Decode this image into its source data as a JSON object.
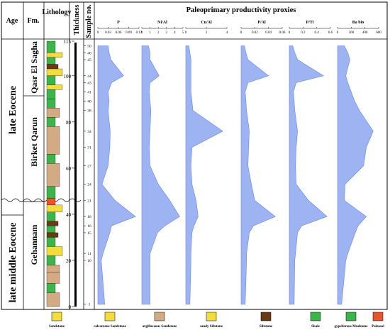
{
  "header": {
    "age": "Age",
    "formation": "Fm.",
    "lithology": "Lithology",
    "thickness": "Thickness",
    "sample_no": "Sample no.",
    "proxies_title": "Paleoprimary productivity proxies"
  },
  "ages": [
    "late Eocene",
    "late middle Eocene"
  ],
  "formations": [
    "Qasr El Sagha",
    "Birket Qarun",
    "Gehannam"
  ],
  "thickness_scale": {
    "ticks": [
      "0",
      "20",
      "40",
      "60",
      "80",
      "100",
      "115"
    ],
    "max": 115
  },
  "samples": [
    {
      "label": "50",
      "depth": 113
    },
    {
      "label": "46",
      "depth": 110
    },
    {
      "label": "45",
      "depth": 107
    },
    {
      "label": "44",
      "depth": 100
    },
    {
      "label": "43",
      "depth": 97
    },
    {
      "label": "41",
      "depth": 93
    },
    {
      "label": "40",
      "depth": 89
    },
    {
      "label": "38",
      "depth": 85
    },
    {
      "label": "34",
      "depth": 76
    },
    {
      "label": "31",
      "depth": 69
    },
    {
      "label": "27",
      "depth": 61
    },
    {
      "label": "24",
      "depth": 53
    },
    {
      "label": "21",
      "depth": 46
    },
    {
      "label": "18",
      "depth": 39
    },
    {
      "label": "16",
      "depth": 35
    },
    {
      "label": "15",
      "depth": 32
    },
    {
      "label": "11",
      "depth": 23
    },
    {
      "label": "10",
      "depth": 20
    },
    {
      "label": "1",
      "depth": 1
    }
  ],
  "proxies": [
    {
      "name": "P",
      "ticks": [
        "0",
        "0.03",
        "0.06",
        "0.09",
        "0.12"
      ],
      "max": 0.12,
      "values": [
        0.03,
        0.033,
        0.038,
        0.075,
        0.04,
        0.03,
        0.033,
        0.03,
        0.036,
        0.035,
        0.03,
        0.012,
        0.05,
        0.11,
        0.04,
        0.035,
        0.015,
        0.01,
        0.02
      ]
    },
    {
      "name": "Ni/Al",
      "ticks": [
        "0",
        "1",
        "2",
        "3",
        "4",
        "5"
      ],
      "max": 5,
      "values": [
        0.8,
        1.0,
        1.0,
        2.1,
        1.0,
        0.9,
        1.0,
        1.1,
        1.0,
        0.9,
        1.0,
        2.0,
        3.4,
        4.6,
        2.8,
        1.9,
        1.0,
        1.0,
        1.0
      ]
    },
    {
      "name": "Cu/Al",
      "ticks": [
        "0",
        "2",
        "4"
      ],
      "max": 4,
      "values": [
        0.3,
        0.4,
        0.5,
        0.5,
        0.5,
        0.5,
        0.6,
        0.7,
        3.6,
        0.6,
        0.5,
        0.6,
        1.0,
        1.2,
        0.8,
        0.6,
        0.5,
        0.5,
        0.4
      ]
    },
    {
      "name": "P/Al",
      "ticks": [
        "0",
        "0.02",
        "0.04",
        "0.06"
      ],
      "max": 0.06,
      "values": [
        0.005,
        0.007,
        0.01,
        0.04,
        0.01,
        0.006,
        0.007,
        0.008,
        0.012,
        0.011,
        0.01,
        0.015,
        0.02,
        0.05,
        0.018,
        0.012,
        0.008,
        0.008,
        0.006
      ]
    },
    {
      "name": "P/Ti",
      "ticks": [
        "0",
        "0.2",
        "0.4",
        "0.6"
      ],
      "max": 0.6,
      "values": [
        0.05,
        0.08,
        0.12,
        0.5,
        0.1,
        0.06,
        0.07,
        0.08,
        0.12,
        0.1,
        0.09,
        0.1,
        0.28,
        0.55,
        0.18,
        0.12,
        0.09,
        0.08,
        0.07
      ]
    },
    {
      "name": "Ba bio",
      "ticks": [
        "0",
        "200",
        "400",
        "600"
      ],
      "max": 600,
      "values": [
        100,
        150,
        180,
        120,
        150,
        200,
        250,
        320,
        520,
        420,
        380,
        110,
        100,
        420,
        300,
        260,
        150,
        120,
        60
      ]
    }
  ],
  "legend": [
    "Sandstone",
    "calcareous Sandstone",
    "argillaceous Sandstone",
    "sandy Siltstone",
    "Siltstone",
    "Shale",
    "gypsiferous Mudstone",
    "Paleosol"
  ],
  "colors": {
    "proxy_fill": "#9db3f2",
    "sandstone": "#f2dd3c",
    "argillaceous": "#d2aa84",
    "shale": "#3bb44a",
    "siltstone": "#6b3a14",
    "paleosol": "#e8542c"
  }
}
